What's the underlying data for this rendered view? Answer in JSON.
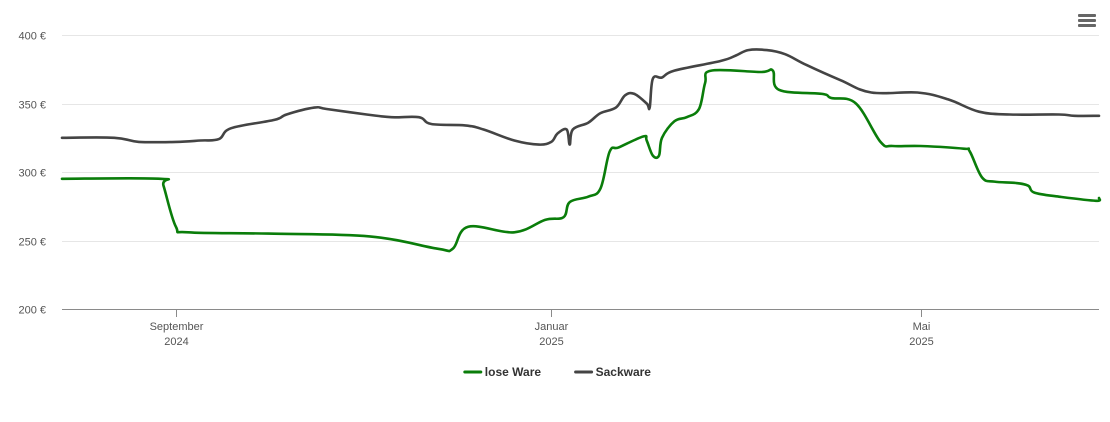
{
  "chart_data": {
    "type": "line",
    "y_unit_suffix": " €",
    "ylim": [
      200,
      400
    ],
    "y_ticks": [
      200,
      250,
      300,
      350,
      400
    ],
    "x_range": [
      "2024-07-26",
      "2025-06-28"
    ],
    "x_ticks": [
      {
        "date": "2024-09-01",
        "month": "September",
        "year": "2024"
      },
      {
        "date": "2025-01-01",
        "month": "Januar",
        "year": "2025"
      },
      {
        "date": "2025-05-01",
        "month": "Mai",
        "year": "2025"
      }
    ],
    "grid": true,
    "legend_position": "bottom-center",
    "series": [
      {
        "name": "lose Ware",
        "color": "#0a7d0a",
        "points": [
          [
            "2024-07-26",
            295
          ],
          [
            "2024-08-27",
            295
          ],
          [
            "2024-08-28",
            290
          ],
          [
            "2024-09-01",
            260
          ],
          [
            "2024-09-05",
            256
          ],
          [
            "2024-10-01",
            255
          ],
          [
            "2024-11-03",
            253
          ],
          [
            "2024-11-25",
            244
          ],
          [
            "2024-11-30",
            244
          ],
          [
            "2024-12-05",
            260
          ],
          [
            "2024-12-20",
            256
          ],
          [
            "2024-12-30",
            265
          ],
          [
            "2025-01-05",
            267
          ],
          [
            "2025-01-07",
            278
          ],
          [
            "2025-01-13",
            282
          ],
          [
            "2025-01-17",
            288
          ],
          [
            "2025-01-20",
            315
          ],
          [
            "2025-01-23",
            318
          ],
          [
            "2025-01-31",
            326
          ],
          [
            "2025-02-01",
            323
          ],
          [
            "2025-02-03",
            312
          ],
          [
            "2025-02-05",
            312
          ],
          [
            "2025-02-06",
            325
          ],
          [
            "2025-02-10",
            337
          ],
          [
            "2025-02-14",
            340
          ],
          [
            "2025-02-18",
            346
          ],
          [
            "2025-02-20",
            365
          ],
          [
            "2025-02-22",
            374
          ],
          [
            "2025-03-10",
            373
          ],
          [
            "2025-03-14",
            374
          ],
          [
            "2025-03-16",
            360
          ],
          [
            "2025-03-30",
            357
          ],
          [
            "2025-04-02",
            354
          ],
          [
            "2025-04-10",
            350
          ],
          [
            "2025-04-18",
            322
          ],
          [
            "2025-04-22",
            319
          ],
          [
            "2025-05-01",
            319
          ],
          [
            "2025-05-15",
            317
          ],
          [
            "2025-05-17",
            315
          ],
          [
            "2025-05-21",
            296
          ],
          [
            "2025-05-25",
            293
          ],
          [
            "2025-06-01",
            292
          ],
          [
            "2025-06-05",
            290
          ],
          [
            "2025-06-07",
            285
          ],
          [
            "2025-06-15",
            282
          ],
          [
            "2025-06-27",
            279
          ],
          [
            "2025-06-28",
            281
          ]
        ]
      },
      {
        "name": "Sackware",
        "color": "#444444",
        "points": [
          [
            "2024-07-26",
            325
          ],
          [
            "2024-08-12",
            325
          ],
          [
            "2024-08-20",
            322
          ],
          [
            "2024-09-01",
            322
          ],
          [
            "2024-09-09",
            323
          ],
          [
            "2024-09-15",
            324
          ],
          [
            "2024-09-19",
            332
          ],
          [
            "2024-10-03",
            338
          ],
          [
            "2024-10-07",
            342
          ],
          [
            "2024-10-16",
            347
          ],
          [
            "2024-10-20",
            346
          ],
          [
            "2024-11-02",
            342
          ],
          [
            "2024-11-10",
            340
          ],
          [
            "2024-11-19",
            340
          ],
          [
            "2024-11-23",
            335
          ],
          [
            "2024-12-04",
            334
          ],
          [
            "2024-12-10",
            331
          ],
          [
            "2024-12-20",
            323
          ],
          [
            "2024-12-28",
            320
          ],
          [
            "2025-01-01",
            322
          ],
          [
            "2025-01-03",
            328
          ],
          [
            "2025-01-06",
            331
          ],
          [
            "2025-01-07",
            320
          ],
          [
            "2025-01-08",
            331
          ],
          [
            "2025-01-13",
            336
          ],
          [
            "2025-01-17",
            343
          ],
          [
            "2025-01-22",
            347
          ],
          [
            "2025-01-25",
            356
          ],
          [
            "2025-01-28",
            357
          ],
          [
            "2025-02-01",
            350
          ],
          [
            "2025-02-02",
            347
          ],
          [
            "2025-02-03",
            368
          ],
          [
            "2025-02-06",
            369
          ],
          [
            "2025-02-10",
            374
          ],
          [
            "2025-02-25",
            381
          ],
          [
            "2025-03-02",
            385
          ],
          [
            "2025-03-06",
            389
          ],
          [
            "2025-03-12",
            389
          ],
          [
            "2025-03-18",
            386
          ],
          [
            "2025-03-25",
            378
          ],
          [
            "2025-04-05",
            367
          ],
          [
            "2025-04-15",
            358
          ],
          [
            "2025-04-30",
            358
          ],
          [
            "2025-05-10",
            353
          ],
          [
            "2025-05-20",
            344
          ],
          [
            "2025-05-30",
            342
          ],
          [
            "2025-06-15",
            342
          ],
          [
            "2025-06-20",
            341
          ],
          [
            "2025-06-28",
            341
          ]
        ]
      }
    ]
  },
  "toolbar": {
    "menu_icon": "hamburger-menu-icon"
  }
}
